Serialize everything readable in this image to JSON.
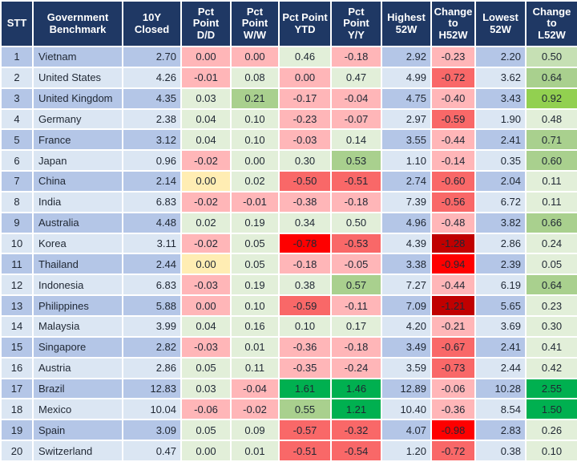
{
  "colors": {
    "header_bg": "#1F3864",
    "header_text": "#FFFFFF",
    "row_odd": "#B4C6E7",
    "row_even": "#DBE6F3",
    "g1": "#E2EFD9",
    "g2": "#C6E0B4",
    "g3": "#A9D08E",
    "g4": "#92D050",
    "g5": "#00B050",
    "r1": "#FFB6B8",
    "r2": "#F96868",
    "r3": "#FE0000",
    "r4": "#C00000",
    "y1": "#FFEDB3"
  },
  "table": {
    "columns": [
      {
        "label": "STT"
      },
      {
        "label": "Government\nBenchmark"
      },
      {
        "label": "10Y Closed"
      },
      {
        "label": "Pct\nPoint\nD/D"
      },
      {
        "label": "Pct\nPoint\nW/W"
      },
      {
        "label": "Pct Point\nYTD"
      },
      {
        "label": "Pct\nPoint\nY/Y"
      },
      {
        "label": "Highest\n52W"
      },
      {
        "label": "Change\nto\nH52W"
      },
      {
        "label": "Lowest\n52W"
      },
      {
        "label": "Change\nto\nL52W"
      }
    ],
    "rows": [
      {
        "stt": "1",
        "country": "Vietnam",
        "closed": "2.70",
        "dd": [
          "0.00",
          "r1"
        ],
        "ww": [
          "0.00",
          "r1"
        ],
        "ytd": [
          "0.46",
          "g1"
        ],
        "yy": [
          "-0.18",
          "r1"
        ],
        "high": "2.92",
        "h52": [
          "-0.23",
          "r1"
        ],
        "low": "2.20",
        "l52": [
          "0.50",
          "g2"
        ]
      },
      {
        "stt": "2",
        "country": "United States",
        "closed": "4.26",
        "dd": [
          "-0.01",
          "r1"
        ],
        "ww": [
          "0.08",
          "g1"
        ],
        "ytd": [
          "0.00",
          "r1"
        ],
        "yy": [
          "0.47",
          "g1"
        ],
        "high": "4.99",
        "h52": [
          "-0.72",
          "r2"
        ],
        "low": "3.62",
        "l52": [
          "0.64",
          "g3"
        ]
      },
      {
        "stt": "3",
        "country": "United Kingdom",
        "closed": "4.35",
        "dd": [
          "0.03",
          "g1"
        ],
        "ww": [
          "0.21",
          "g3"
        ],
        "ytd": [
          "-0.17",
          "r1"
        ],
        "yy": [
          "-0.04",
          "r1"
        ],
        "high": "4.75",
        "h52": [
          "-0.40",
          "r1"
        ],
        "low": "3.43",
        "l52": [
          "0.92",
          "g4"
        ]
      },
      {
        "stt": "4",
        "country": "Germany",
        "closed": "2.38",
        "dd": [
          "0.04",
          "g1"
        ],
        "ww": [
          "0.10",
          "g1"
        ],
        "ytd": [
          "-0.23",
          "r1"
        ],
        "yy": [
          "-0.07",
          "r1"
        ],
        "high": "2.97",
        "h52": [
          "-0.59",
          "r2"
        ],
        "low": "1.90",
        "l52": [
          "0.48",
          "g1"
        ]
      },
      {
        "stt": "5",
        "country": "France",
        "closed": "3.12",
        "dd": [
          "0.04",
          "g1"
        ],
        "ww": [
          "0.10",
          "g1"
        ],
        "ytd": [
          "-0.03",
          "r1"
        ],
        "yy": [
          "0.14",
          "g1"
        ],
        "high": "3.55",
        "h52": [
          "-0.44",
          "r1"
        ],
        "low": "2.41",
        "l52": [
          "0.71",
          "g3"
        ]
      },
      {
        "stt": "6",
        "country": "Japan",
        "closed": "0.96",
        "dd": [
          "-0.02",
          "r1"
        ],
        "ww": [
          "0.00",
          "g1"
        ],
        "ytd": [
          "0.30",
          "g1"
        ],
        "yy": [
          "0.53",
          "g3"
        ],
        "high": "1.10",
        "h52": [
          "-0.14",
          "r1"
        ],
        "low": "0.35",
        "l52": [
          "0.60",
          "g3"
        ]
      },
      {
        "stt": "7",
        "country": "China",
        "closed": "2.14",
        "dd": [
          "0.00",
          "y1"
        ],
        "ww": [
          "0.02",
          "g1"
        ],
        "ytd": [
          "-0.50",
          "r2"
        ],
        "yy": [
          "-0.51",
          "r2"
        ],
        "high": "2.74",
        "h52": [
          "-0.60",
          "r2"
        ],
        "low": "2.04",
        "l52": [
          "0.11",
          "g1"
        ]
      },
      {
        "stt": "8",
        "country": "India",
        "closed": "6.83",
        "dd": [
          "-0.02",
          "r1"
        ],
        "ww": [
          "-0.01",
          "r1"
        ],
        "ytd": [
          "-0.38",
          "r1"
        ],
        "yy": [
          "-0.18",
          "r1"
        ],
        "high": "7.39",
        "h52": [
          "-0.56",
          "r2"
        ],
        "low": "6.72",
        "l52": [
          "0.11",
          "g1"
        ]
      },
      {
        "stt": "9",
        "country": "Australia",
        "closed": "4.48",
        "dd": [
          "0.02",
          "g1"
        ],
        "ww": [
          "0.19",
          "g1"
        ],
        "ytd": [
          "0.34",
          "g1"
        ],
        "yy": [
          "0.50",
          "g1"
        ],
        "high": "4.96",
        "h52": [
          "-0.48",
          "r1"
        ],
        "low": "3.82",
        "l52": [
          "0.66",
          "g3"
        ]
      },
      {
        "stt": "10",
        "country": "Korea",
        "closed": "3.11",
        "dd": [
          "-0.02",
          "r1"
        ],
        "ww": [
          "0.05",
          "g1"
        ],
        "ytd": [
          "-0.78",
          "r3"
        ],
        "yy": [
          "-0.53",
          "r2"
        ],
        "high": "4.39",
        "h52": [
          "-1.28",
          "r4"
        ],
        "low": "2.86",
        "l52": [
          "0.24",
          "g1"
        ]
      },
      {
        "stt": "11",
        "country": "Thailand",
        "closed": "2.44",
        "dd": [
          "0.00",
          "y1"
        ],
        "ww": [
          "0.05",
          "g1"
        ],
        "ytd": [
          "-0.18",
          "r1"
        ],
        "yy": [
          "-0.05",
          "r1"
        ],
        "high": "3.38",
        "h52": [
          "-0.94",
          "r3"
        ],
        "low": "2.39",
        "l52": [
          "0.05",
          "g1"
        ]
      },
      {
        "stt": "12",
        "country": "Indonesia",
        "closed": "6.83",
        "dd": [
          "-0.03",
          "r1"
        ],
        "ww": [
          "0.19",
          "g1"
        ],
        "ytd": [
          "0.38",
          "g1"
        ],
        "yy": [
          "0.57",
          "g3"
        ],
        "high": "7.27",
        "h52": [
          "-0.44",
          "r1"
        ],
        "low": "6.19",
        "l52": [
          "0.64",
          "g3"
        ]
      },
      {
        "stt": "13",
        "country": "Philippines",
        "closed": "5.88",
        "dd": [
          "0.00",
          "r1"
        ],
        "ww": [
          "0.10",
          "g1"
        ],
        "ytd": [
          "-0.59",
          "r2"
        ],
        "yy": [
          "-0.11",
          "r1"
        ],
        "high": "7.09",
        "h52": [
          "-1.21",
          "r4"
        ],
        "low": "5.65",
        "l52": [
          "0.23",
          "g1"
        ]
      },
      {
        "stt": "14",
        "country": "Malaysia",
        "closed": "3.99",
        "dd": [
          "0.04",
          "g1"
        ],
        "ww": [
          "0.16",
          "g1"
        ],
        "ytd": [
          "0.10",
          "g1"
        ],
        "yy": [
          "0.17",
          "g1"
        ],
        "high": "4.20",
        "h52": [
          "-0.21",
          "r1"
        ],
        "low": "3.69",
        "l52": [
          "0.30",
          "g1"
        ]
      },
      {
        "stt": "15",
        "country": "Singapore",
        "closed": "2.82",
        "dd": [
          "-0.03",
          "r1"
        ],
        "ww": [
          "0.01",
          "g1"
        ],
        "ytd": [
          "-0.36",
          "r1"
        ],
        "yy": [
          "-0.18",
          "r1"
        ],
        "high": "3.49",
        "h52": [
          "-0.67",
          "r2"
        ],
        "low": "2.41",
        "l52": [
          "0.41",
          "g1"
        ]
      },
      {
        "stt": "16",
        "country": "Austria",
        "closed": "2.86",
        "dd": [
          "0.05",
          "g1"
        ],
        "ww": [
          "0.11",
          "g1"
        ],
        "ytd": [
          "-0.35",
          "r1"
        ],
        "yy": [
          "-0.24",
          "r1"
        ],
        "high": "3.59",
        "h52": [
          "-0.73",
          "r2"
        ],
        "low": "2.44",
        "l52": [
          "0.42",
          "g1"
        ]
      },
      {
        "stt": "17",
        "country": "Brazil",
        "closed": "12.83",
        "dd": [
          "0.03",
          "g1"
        ],
        "ww": [
          "-0.04",
          "r1"
        ],
        "ytd": [
          "1.61",
          "g5"
        ],
        "yy": [
          "1.46",
          "g5"
        ],
        "high": "12.89",
        "h52": [
          "-0.06",
          "r1"
        ],
        "low": "10.28",
        "l52": [
          "2.55",
          "g5"
        ]
      },
      {
        "stt": "18",
        "country": "Mexico",
        "closed": "10.04",
        "dd": [
          "-0.06",
          "r1"
        ],
        "ww": [
          "-0.02",
          "r1"
        ],
        "ytd": [
          "0.55",
          "g3"
        ],
        "yy": [
          "1.21",
          "g5"
        ],
        "high": "10.40",
        "h52": [
          "-0.36",
          "r1"
        ],
        "low": "8.54",
        "l52": [
          "1.50",
          "g5"
        ]
      },
      {
        "stt": "19",
        "country": "Spain",
        "closed": "3.09",
        "dd": [
          "0.05",
          "g1"
        ],
        "ww": [
          "0.09",
          "g1"
        ],
        "ytd": [
          "-0.57",
          "r2"
        ],
        "yy": [
          "-0.32",
          "r2"
        ],
        "high": "4.07",
        "h52": [
          "-0.98",
          "r3"
        ],
        "low": "2.83",
        "l52": [
          "0.26",
          "g1"
        ]
      },
      {
        "stt": "20",
        "country": "Switzerland",
        "closed": "0.47",
        "dd": [
          "0.00",
          "g1"
        ],
        "ww": [
          "0.01",
          "g1"
        ],
        "ytd": [
          "-0.51",
          "r2"
        ],
        "yy": [
          "-0.54",
          "r2"
        ],
        "high": "1.20",
        "h52": [
          "-0.72",
          "r2"
        ],
        "low": "0.38",
        "l52": [
          "0.10",
          "g1"
        ]
      }
    ]
  }
}
